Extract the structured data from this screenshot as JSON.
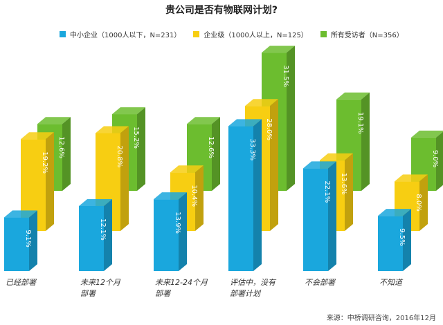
{
  "chart_data": {
    "type": "bar",
    "title": "贵公司是否有物联网计划?",
    "categories": [
      [
        "已经部署"
      ],
      [
        "未来12个月",
        "部署"
      ],
      [
        "未来12-24个月",
        "部署"
      ],
      [
        "评估中，没有",
        "部署计划"
      ],
      [
        "不会部署"
      ],
      [
        "不知道"
      ]
    ],
    "series": [
      {
        "name": "中小企业（1000人以下，N=231）",
        "color": "#1aa7dd",
        "values": [
          9.1,
          12.1,
          13.9,
          33.3,
          22.1,
          9.5
        ]
      },
      {
        "name": "企业级（1000人以上，N=125）",
        "color": "#f7ce12",
        "values": [
          19.2,
          20.8,
          10.4,
          28.0,
          13.6,
          8.0
        ]
      },
      {
        "name": "所有受访者（N=356）",
        "color": "#6cbd2f",
        "values": [
          12.6,
          15.2,
          12.6,
          31.5,
          19.1,
          9.0
        ]
      }
    ],
    "value_labels": [
      [
        "9.1%",
        "19.2%",
        "12.6%"
      ],
      [
        "12.1%",
        "20.8%",
        "15.2%"
      ],
      [
        "13.9%",
        "10.4%",
        "12.6%"
      ],
      [
        "33.3%",
        "28.0%",
        "31.5%"
      ],
      [
        "22.1%",
        "13.6%",
        "19.1%"
      ],
      [
        "9.5%",
        "8.0%",
        "9.0%"
      ]
    ],
    "ylim": [
      0,
      35
    ],
    "grid": false,
    "legend_position": "top"
  },
  "source": "来源：中桥调研咨询，2016年12月"
}
